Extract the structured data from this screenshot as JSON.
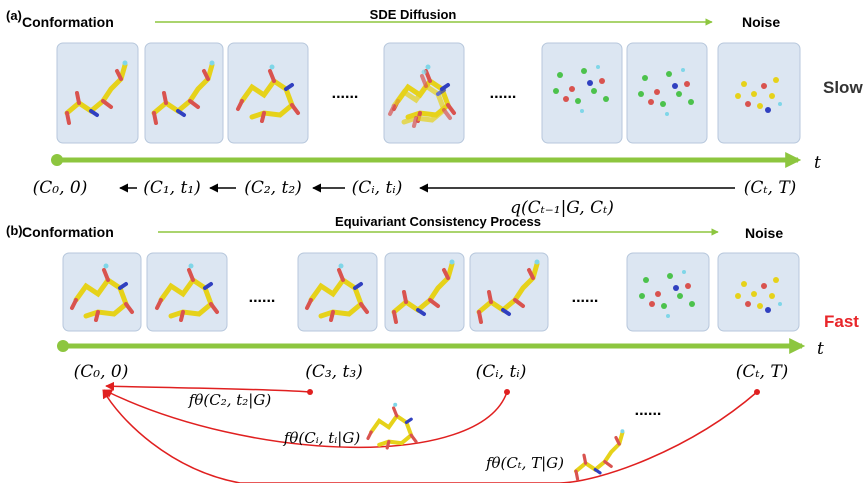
{
  "panel_a": {
    "label": "(a)",
    "start_label": "Conformation",
    "process_label": "SDE Diffusion",
    "end_label": "Noise",
    "speed_label": "Slow",
    "ellipsis_1": "......",
    "ellipsis_2": "......",
    "axis_label": "t",
    "states": [
      "(C₀, 0)",
      "(C₁, t₁)",
      "(C₂, t₂)",
      "(Cᵢ, tᵢ)",
      "(Cₜ, T)"
    ],
    "transition_label": "q(Cₜ₋₁|G, Cₜ)"
  },
  "panel_b": {
    "label": "(b)",
    "start_label": "Conformation",
    "process_label": "Equivariant Consistency Process",
    "end_label": "Noise",
    "speed_label": "Fast",
    "ellipsis_1": "......",
    "ellipsis_2": "......",
    "ellipsis_3": "......",
    "axis_label": "t",
    "states": [
      "(C₀, 0)",
      "(C₃, t₃)",
      "(Cᵢ, tᵢ)",
      "(Cₜ, T)"
    ],
    "map_labels": [
      "fθ(C₂, t₂|G)",
      "fθ(Cᵢ, tᵢ|G)",
      "fθ(Cₜ, T|G)"
    ]
  },
  "colors": {
    "green": "#8dc63f",
    "panel_fill": "#dce6f2",
    "panel_stroke": "#b7c7dc",
    "red": "#e02020",
    "fast_red": "#e8262a",
    "molecule_yellow": "#e6d21a",
    "molecule_red": "#d9534f"
  }
}
